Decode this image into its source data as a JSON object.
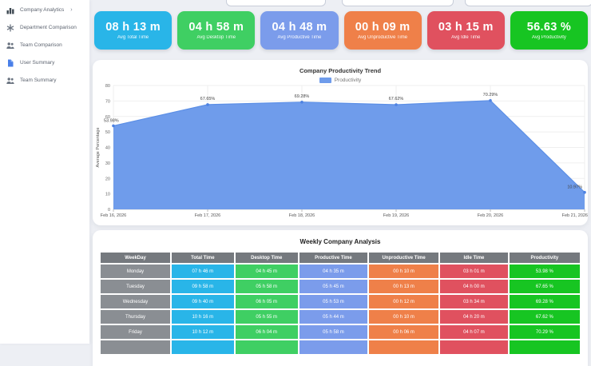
{
  "topbar": {
    "inputs": [
      {
        "value": ""
      },
      {
        "value": ""
      },
      {
        "value": ""
      }
    ]
  },
  "sidebar": {
    "items": [
      {
        "label": "Company Analytics",
        "icon": "bar-chart-icon",
        "chevron": "›",
        "active": true
      },
      {
        "label": "Department Comparison",
        "icon": "asterisk-icon",
        "chevron": "",
        "active": false
      },
      {
        "label": "Team Comparison",
        "icon": "team-icon",
        "chevron": "",
        "active": false
      },
      {
        "label": "User Summary",
        "icon": "file-icon",
        "chevron": "",
        "active": false
      },
      {
        "label": "Team Summary",
        "icon": "team-icon",
        "chevron": "",
        "active": false
      }
    ]
  },
  "stats": [
    {
      "value": "08 h 13 m",
      "label": "Avg Total Time",
      "color": "#29b5e8"
    },
    {
      "value": "04 h 58 m",
      "label": "Avg Desktop Time",
      "color": "#3fcf63"
    },
    {
      "value": "04 h 48 m",
      "label": "Avg Productive Time",
      "color": "#7b9ceb"
    },
    {
      "value": "00 h 09 m",
      "label": "Avg Unproductive Time",
      "color": "#ef8049"
    },
    {
      "value": "03 h 15 m",
      "label": "Avg Idle Time",
      "color": "#e0515f"
    },
    {
      "value": "56.63 %",
      "label": "Avg Productivity",
      "color": "#17c522"
    }
  ],
  "chart_data": {
    "type": "area",
    "title": "Company Productivity Trend",
    "legend_label": "Productivity",
    "legend_position": "top",
    "x": [
      "Feb 16, 2026",
      "Feb 17, 2026",
      "Feb 18, 2026",
      "Feb 19, 2026",
      "Feb 20, 2026",
      "Feb 21, 2026"
    ],
    "values": [
      53.98,
      67.65,
      69.28,
      67.62,
      70.29,
      10.97
    ],
    "point_labels": [
      "53.98%",
      "67.65%",
      "69.28%",
      "67.62%",
      "70.29%",
      "10.97%"
    ],
    "ylabel": "Average Percentage",
    "ylim": [
      0,
      80
    ],
    "ytick_step": 10,
    "grid": true,
    "fill_color": "#6f9ceb",
    "line_color": "#5c8fe6",
    "point_color": "#4d82e2"
  },
  "table": {
    "title": "Weekly Company Analysis",
    "columns": [
      "WeekDay",
      "Total Time",
      "Desktop Time",
      "Productive Time",
      "Unproductive Time",
      "Idle Time",
      "Productivity"
    ],
    "header_color": "#75797e",
    "weekday_color": "#8a8e93",
    "col_colors": [
      "#29b5e8",
      "#3fcf63",
      "#7b9ceb",
      "#ef8049",
      "#e0515f",
      "#17c522"
    ],
    "rows": [
      {
        "day": "Monday",
        "cells": [
          "07 h 46 m",
          "04 h 45 m",
          "04 h 35 m",
          "00 h 10 m",
          "03 h 01 m",
          "53.98 %"
        ]
      },
      {
        "day": "Tuesday",
        "cells": [
          "09 h 58 m",
          "05 h 58 m",
          "05 h 45 m",
          "00 h 13 m",
          "04 h 00 m",
          "67.65 %"
        ]
      },
      {
        "day": "Wednesday",
        "cells": [
          "09 h 40 m",
          "06 h 05 m",
          "05 h 53 m",
          "00 h 12 m",
          "03 h 34 m",
          "69.28 %"
        ]
      },
      {
        "day": "Thursday",
        "cells": [
          "10 h 16 m",
          "05 h 55 m",
          "05 h 44 m",
          "00 h 10 m",
          "04 h 20 m",
          "67.62 %"
        ]
      },
      {
        "day": "Friday",
        "cells": [
          "10 h 12 m",
          "06 h 04 m",
          "05 h 58 m",
          "00 h 06 m",
          "04 h 07 m",
          "70.29 %"
        ]
      },
      {
        "day": "",
        "cells": [
          "",
          "",
          "",
          "",
          "",
          ""
        ]
      }
    ]
  }
}
